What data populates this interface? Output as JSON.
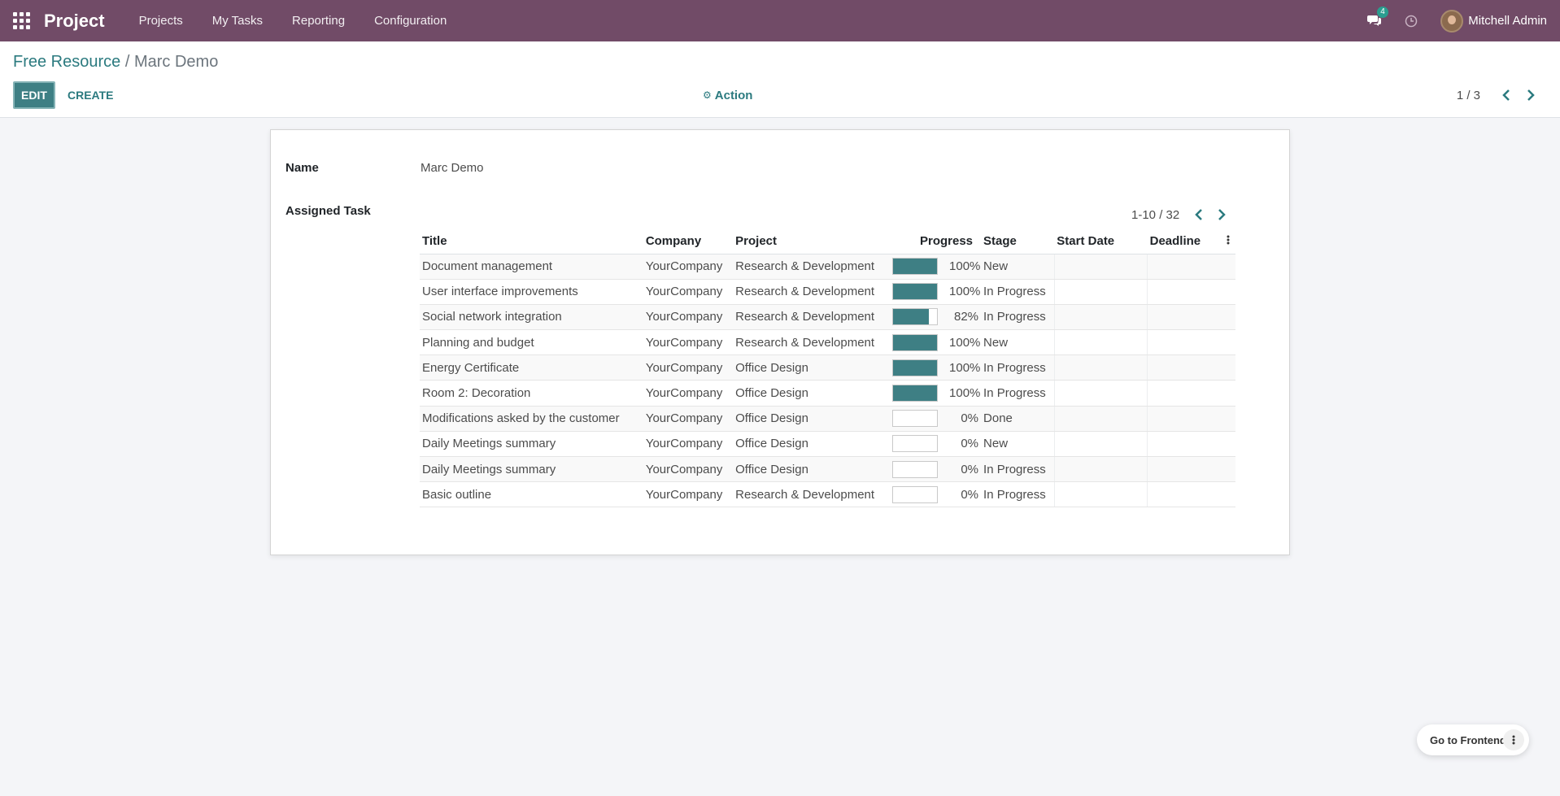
{
  "navbar": {
    "brand": "Project",
    "menu": [
      "Projects",
      "My Tasks",
      "Reporting",
      "Configuration"
    ],
    "chat_count": "4",
    "user_name": "Mitchell Admin",
    "accent_color": "#714b67"
  },
  "breadcrumb": {
    "parent": "Free Resource",
    "separator": "/",
    "current": "Marc Demo"
  },
  "toolbar": {
    "edit_label": "EDIT",
    "create_label": "CREATE",
    "action_label": "Action",
    "pager_value": "1 / 3"
  },
  "form": {
    "name_label": "Name",
    "name_value": "Marc Demo",
    "assigned_label": "Assigned Task",
    "sub_pager_value": "1-10 / 32",
    "columns": [
      "Title",
      "Company",
      "Project",
      "Progress",
      "Stage",
      "Start Date",
      "Deadline"
    ],
    "rows": [
      {
        "title": "Document management",
        "company": "YourCompany",
        "project": "Research & Development",
        "progress": 100,
        "progress_label": "100%",
        "stage": "New",
        "start": "",
        "deadline": ""
      },
      {
        "title": "User interface improvements",
        "company": "YourCompany",
        "project": "Research & Development",
        "progress": 100,
        "progress_label": "100%",
        "stage": "In Progress",
        "start": "",
        "deadline": ""
      },
      {
        "title": "Social network integration",
        "company": "YourCompany",
        "project": "Research & Development",
        "progress": 82,
        "progress_label": "82%",
        "stage": "In Progress",
        "start": "",
        "deadline": ""
      },
      {
        "title": "Planning and budget",
        "company": "YourCompany",
        "project": "Research & Development",
        "progress": 100,
        "progress_label": "100%",
        "stage": "New",
        "start": "",
        "deadline": ""
      },
      {
        "title": "Energy Certificate",
        "company": "YourCompany",
        "project": "Office Design",
        "progress": 100,
        "progress_label": "100%",
        "stage": "In Progress",
        "start": "",
        "deadline": ""
      },
      {
        "title": "Room 2: Decoration",
        "company": "YourCompany",
        "project": "Office Design",
        "progress": 100,
        "progress_label": "100%",
        "stage": "In Progress",
        "start": "",
        "deadline": ""
      },
      {
        "title": "Modifications asked by the customer",
        "company": "YourCompany",
        "project": "Office Design",
        "progress": 0,
        "progress_label": "0%",
        "stage": "Done",
        "start": "",
        "deadline": ""
      },
      {
        "title": "Daily Meetings summary",
        "company": "YourCompany",
        "project": "Office Design",
        "progress": 0,
        "progress_label": "0%",
        "stage": "New",
        "start": "",
        "deadline": ""
      },
      {
        "title": "Daily Meetings summary",
        "company": "YourCompany",
        "project": "Office Design",
        "progress": 0,
        "progress_label": "0%",
        "stage": "In Progress",
        "start": "",
        "deadline": ""
      },
      {
        "title": "Basic outline",
        "company": "YourCompany",
        "project": "Research & Development",
        "progress": 0,
        "progress_label": "0%",
        "stage": "In Progress",
        "start": "",
        "deadline": ""
      }
    ]
  },
  "footer": {
    "frontend_label": "Go to Frontend"
  }
}
